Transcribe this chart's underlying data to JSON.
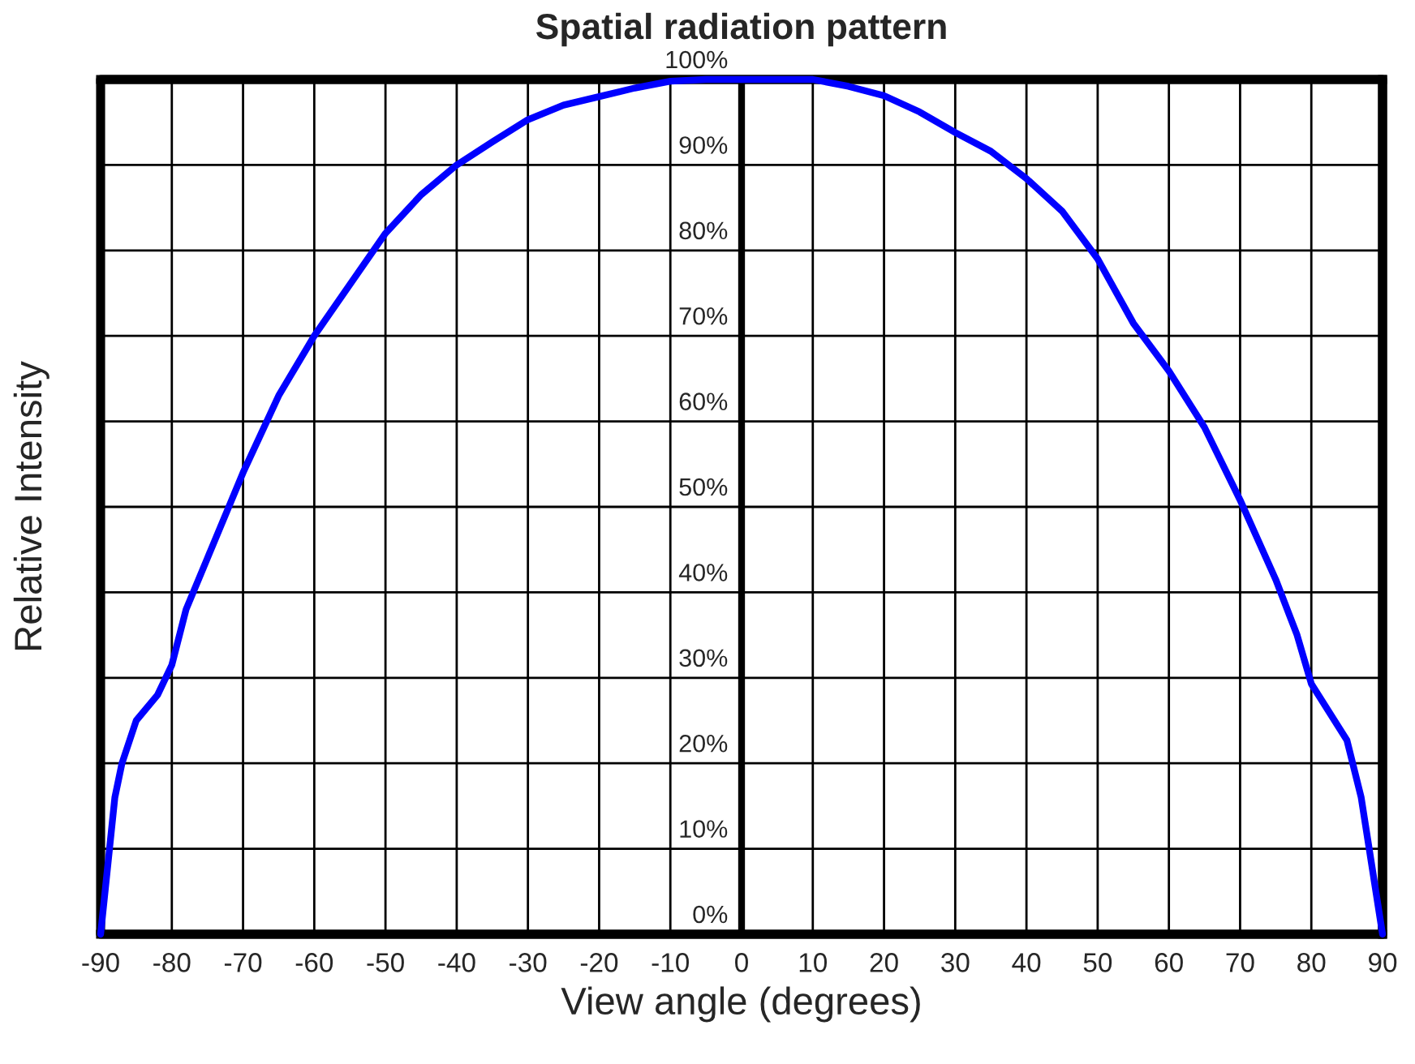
{
  "chart_data": {
    "type": "line",
    "title": "Spatial radiation pattern",
    "xlabel": "View angle (degrees)",
    "ylabel": "Relative Intensity",
    "x": [
      -90,
      -88,
      -87,
      -85,
      -82,
      -80,
      -78,
      -75,
      -72,
      -70,
      -65,
      -60,
      -55,
      -50,
      -45,
      -40,
      -35,
      -30,
      -25,
      -20,
      -15,
      -10,
      -5,
      0,
      5,
      10,
      15,
      20,
      25,
      30,
      35,
      40,
      45,
      50,
      55,
      60,
      65,
      70,
      75,
      78,
      80,
      85,
      87,
      90
    ],
    "series": [
      {
        "color": "#0000ff",
        "values": [
          0,
          16,
          20,
          25,
          28,
          31.5,
          38,
          44,
          50,
          54,
          63,
          70,
          76,
          82,
          86.5,
          90,
          92.7,
          95.3,
          97,
          98,
          99,
          99.8,
          100,
          100,
          100,
          100,
          99.2,
          98.1,
          96.2,
          93.8,
          91.6,
          88.4,
          84.6,
          79,
          71.5,
          65.9,
          59.3,
          50.8,
          41.5,
          35,
          29.3,
          22.7,
          16,
          0
        ]
      }
    ],
    "xlim": [
      -90,
      90
    ],
    "ylim": [
      0,
      100
    ],
    "xticks": [
      -90,
      -80,
      -70,
      -60,
      -50,
      -40,
      -30,
      -20,
      -10,
      0,
      10,
      20,
      30,
      40,
      50,
      60,
      70,
      80,
      90
    ],
    "yticks": [
      {
        "value": 0,
        "label": "0%"
      },
      {
        "value": 10,
        "label": "10%"
      },
      {
        "value": 20,
        "label": "20%"
      },
      {
        "value": 30,
        "label": "30%"
      },
      {
        "value": 40,
        "label": "40%"
      },
      {
        "value": 50,
        "label": "50%"
      },
      {
        "value": 60,
        "label": "60%"
      },
      {
        "value": 70,
        "label": "70%"
      },
      {
        "value": 80,
        "label": "80%"
      },
      {
        "value": 90,
        "label": "90%"
      },
      {
        "value": 100,
        "label": "100%"
      }
    ],
    "grid": true,
    "legend": false,
    "marker": "none",
    "line_style": "solid"
  }
}
